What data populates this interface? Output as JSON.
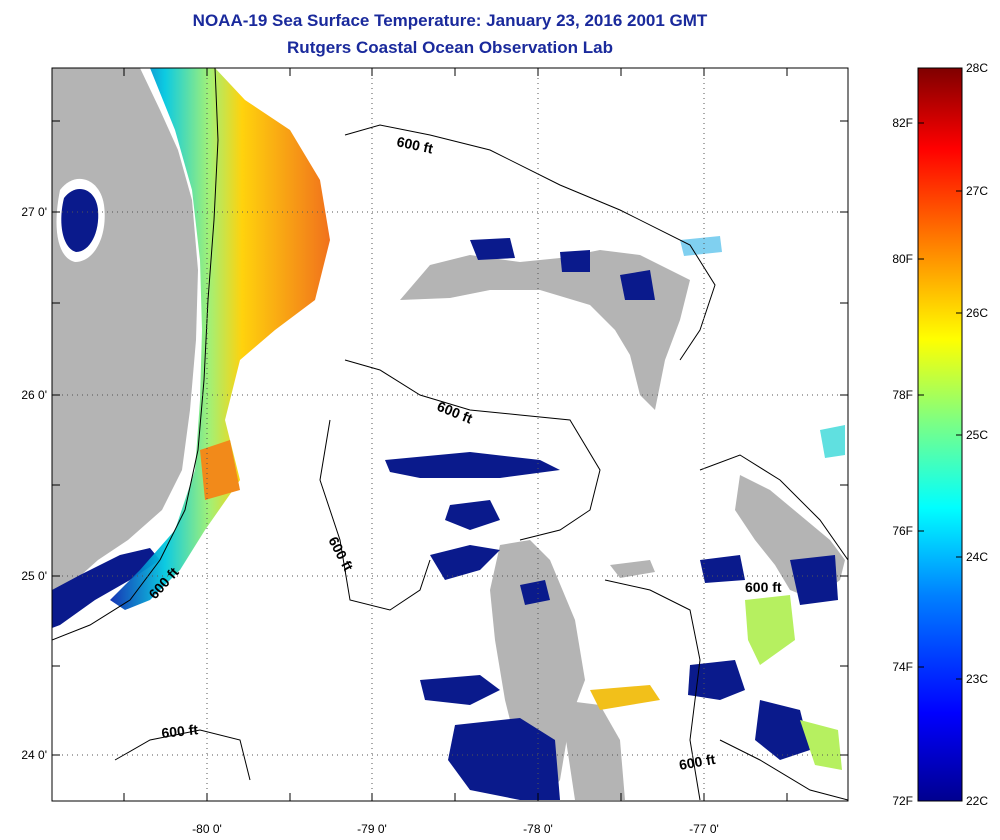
{
  "header": {
    "title": "NOAA-19 Sea Surface Temperature:  January 23, 2016 2001 GMT",
    "subtitle": "Rutgers Coastal Ocean Observation Lab"
  },
  "axes": {
    "longitude_labels": [
      "-80 0'",
      "-79 0'",
      "-78 0'",
      "-77 0'"
    ],
    "latitude_labels": [
      "27 0'",
      "26 0'",
      "25 0'",
      "24 0'"
    ],
    "lon_range": [
      -80.8,
      -76.0
    ],
    "lat_range": [
      23.7,
      27.8
    ]
  },
  "isobath_labels": [
    "600 ft",
    "600 ft",
    "600 ft",
    "600 ft",
    "600 ft",
    "600 ft"
  ],
  "colorbar": {
    "celsius_labels": [
      "28C",
      "27C",
      "26C",
      "25C",
      "24C",
      "23C",
      "22C"
    ],
    "fahrenheit_labels": [
      "82F",
      "80F",
      "78F",
      "76F",
      "74F",
      "72F"
    ],
    "colors": [
      "#7f0000",
      "#ff0000",
      "#ff8000",
      "#ffff00",
      "#80ff80",
      "#00ffff",
      "#0080ff",
      "#0000ff",
      "#00008f"
    ]
  },
  "colors": {
    "land": "#b4b4b4",
    "title": "#1a2a9c",
    "cold": "#0a1a8c",
    "warm": "#f28a1a"
  }
}
